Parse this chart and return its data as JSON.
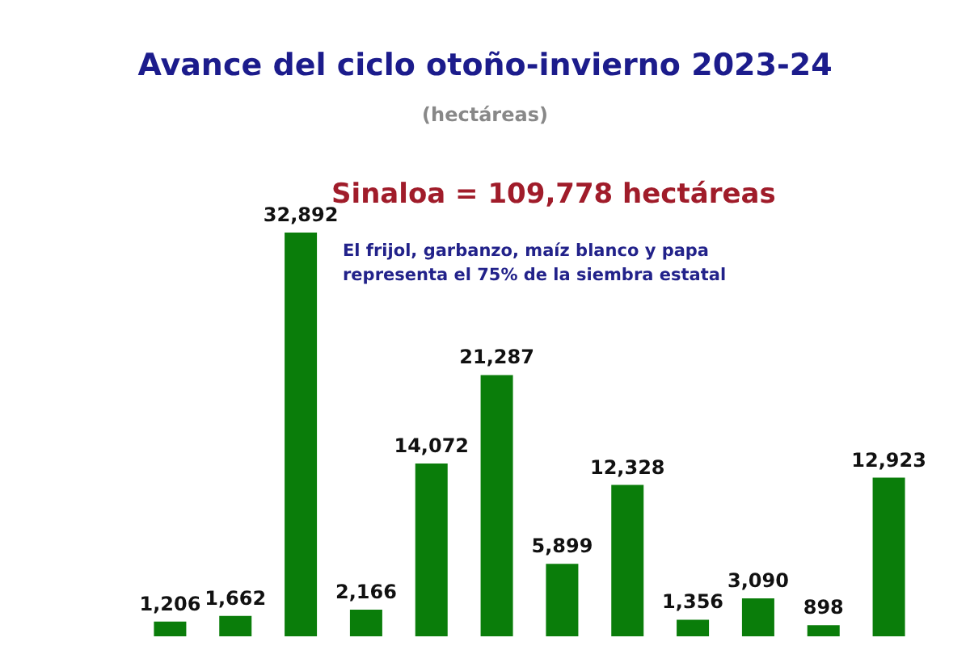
{
  "chart_data": {
    "type": "bar",
    "title": "Avance del ciclo otoño-invierno 2023-24",
    "subtitle": "(hectáreas)",
    "annotations": [
      "Sinaloa = 109,778 hectáreas",
      "El frijol, garbanzo, maíz blanco y papa\nrepresenta el 75% de la siembra estatal"
    ],
    "categories": [
      null,
      null,
      null,
      null,
      null,
      null,
      null,
      null,
      null,
      null,
      null,
      null
    ],
    "values": [
      1206,
      1662,
      32892,
      2166,
      14072,
      21287,
      5899,
      12328,
      1356,
      3090,
      898,
      12923
    ],
    "value_labels": [
      "1,206",
      "1,662",
      "32,892",
      "2,166",
      "14,072",
      "21,287",
      "5,899",
      "12,328",
      "1,356",
      "3,090",
      "898",
      "12,923"
    ],
    "color": "#0a7d0a",
    "tick_labels": false,
    "grid": false
  }
}
